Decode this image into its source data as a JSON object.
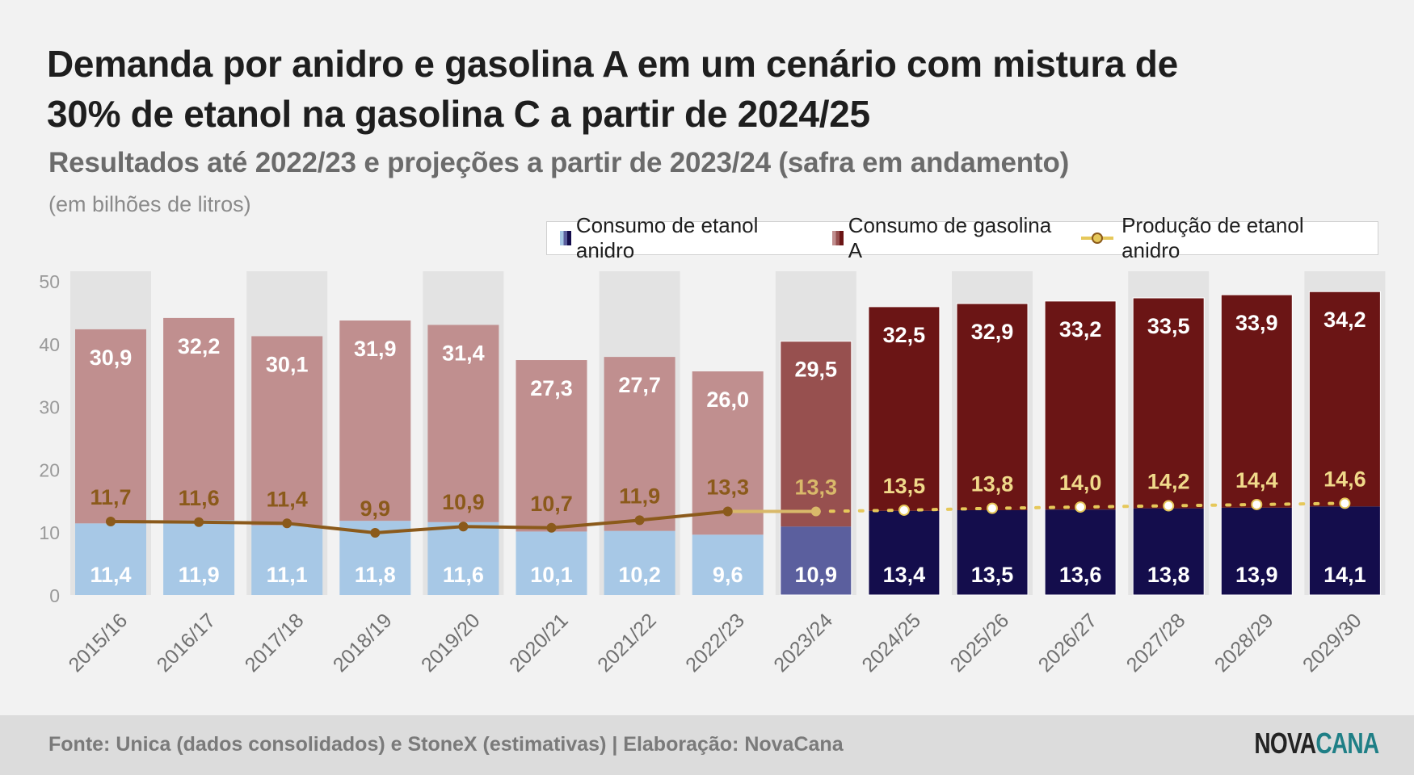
{
  "title": "Demanda por anidro e gasolina A em um cenário com mistura de 30% de etanol na gasolina C a partir de 2024/25",
  "subtitle": "Resultados até 2022/23 e projeções a partir de 2023/24 (safra em andamento)",
  "unit": "(em bilhões de litros)",
  "legend": {
    "anidro": "Consumo de etanol anidro",
    "gasolina": "Consumo de gasolina A",
    "producao": "Produção de etanol anidro"
  },
  "source": "Fonte: Unica (dados consolidados) e StoneX (estimativas) | Elaboração: NovaCana",
  "logo": {
    "part1": "NOVA",
    "part2": "CANA"
  },
  "chart_data": {
    "type": "bar",
    "stacked": true,
    "categories": [
      "2015/16",
      "2016/17",
      "2017/18",
      "2018/19",
      "2019/20",
      "2020/21",
      "2021/22",
      "2022/23",
      "2023/24",
      "2024/25",
      "2025/26",
      "2026/27",
      "2027/28",
      "2028/29",
      "2029/30"
    ],
    "phase": [
      "result",
      "result",
      "result",
      "result",
      "result",
      "result",
      "result",
      "result",
      "current",
      "projection",
      "projection",
      "projection",
      "projection",
      "projection",
      "projection"
    ],
    "series": [
      {
        "name": "Consumo de etanol anidro",
        "type": "bar",
        "values": [
          11.4,
          11.9,
          11.1,
          11.8,
          11.6,
          10.1,
          10.2,
          9.6,
          10.9,
          13.4,
          13.5,
          13.6,
          13.8,
          13.9,
          14.1
        ],
        "labels": [
          "11,4",
          "11,9",
          "11,1",
          "11,8",
          "11,6",
          "10,1",
          "10,2",
          "9,6",
          "10,9",
          "13,4",
          "13,5",
          "13,6",
          "13,8",
          "13,9",
          "14,1"
        ]
      },
      {
        "name": "Consumo de gasolina A",
        "type": "bar",
        "values": [
          30.9,
          32.2,
          30.1,
          31.9,
          31.4,
          27.3,
          27.7,
          26.0,
          29.5,
          32.5,
          32.9,
          33.2,
          33.5,
          33.9,
          34.2
        ],
        "labels": [
          "30,9",
          "32,2",
          "30,1",
          "31,9",
          "31,4",
          "27,3",
          "27,7",
          "26,0",
          "29,5",
          "32,5",
          "32,9",
          "33,2",
          "33,5",
          "33,9",
          "34,2"
        ]
      },
      {
        "name": "Produção de etanol anidro",
        "type": "line",
        "values": [
          11.7,
          11.6,
          11.4,
          9.9,
          10.9,
          10.7,
          11.9,
          13.3,
          13.3,
          13.5,
          13.8,
          14.0,
          14.2,
          14.4,
          14.6
        ],
        "labels": [
          "11,7",
          "11,6",
          "11,4",
          "9,9",
          "10,9",
          "10,7",
          "11,9",
          "13,3",
          "13,3",
          "13,5",
          "13,8",
          "14,0",
          "14,2",
          "14,4",
          "14,6"
        ]
      }
    ],
    "colors": {
      "anidro": {
        "result": "#a7c8e6",
        "current": "#5b5f9e",
        "projection": "#140d4c"
      },
      "gasolina": {
        "result": "#c08f8f",
        "current": "#97504f",
        "projection": "#6b1515"
      },
      "producao": {
        "result": "#8b5a1b",
        "current": "#d9b96a",
        "projection": "#e6c85a"
      },
      "column_bg": "#e3e3e3"
    },
    "ylim": [
      0,
      50
    ],
    "yticks": [
      0,
      10,
      20,
      30,
      40,
      50
    ],
    "grid": false,
    "legend_position": "top-right"
  }
}
